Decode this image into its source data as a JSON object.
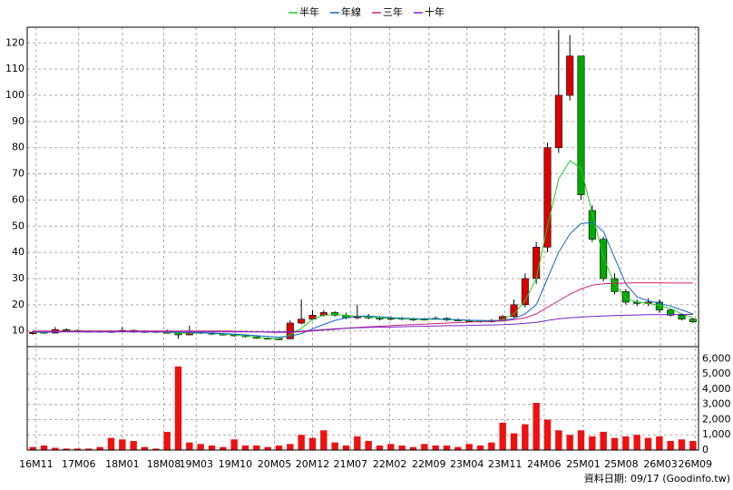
{
  "chart_data": {
    "type": "candlestick",
    "legend_position": "top",
    "grid": true,
    "up_color": "#dd0000",
    "down_color": "#00aa00",
    "volume_color": "#ee1111",
    "footnote": "資料日期: 09/17 (Goodinfo.tw)",
    "xlim": [
      0,
      60
    ],
    "xticks": [
      {
        "value": 0.8,
        "label": "16M11"
      },
      {
        "value": 4.6,
        "label": "17M06"
      },
      {
        "value": 8.5,
        "label": "18M01"
      },
      {
        "value": 12.2,
        "label": "18M08"
      },
      {
        "value": 15.1,
        "label": "19M03"
      },
      {
        "value": 18.6,
        "label": "19M10"
      },
      {
        "value": 22.1,
        "label": "20M05"
      },
      {
        "value": 25.5,
        "label": "20M12"
      },
      {
        "value": 28.9,
        "label": "21M07"
      },
      {
        "value": 32.4,
        "label": "22M02"
      },
      {
        "value": 35.9,
        "label": "22M09"
      },
      {
        "value": 39.3,
        "label": "23M04"
      },
      {
        "value": 42.7,
        "label": "23M11"
      },
      {
        "value": 46.2,
        "label": "24M06"
      },
      {
        "value": 49.7,
        "label": "25M01"
      },
      {
        "value": 53.1,
        "label": "25M08"
      },
      {
        "value": 56.6,
        "label": "26M03"
      },
      {
        "value": 59.7,
        "label": "26M09"
      }
    ],
    "ylim": [
      4,
      126
    ],
    "yticks": [
      10,
      20,
      30,
      40,
      50,
      60,
      70,
      80,
      90,
      100,
      110,
      120
    ],
    "y2lim": [
      0,
      6800
    ],
    "y2ticks": [
      0,
      {
        "value": 1000,
        "label": "1,000"
      },
      {
        "value": 2000,
        "label": "2,000"
      },
      {
        "value": 3000,
        "label": "3,000"
      },
      {
        "value": 4000,
        "label": "4,000"
      },
      {
        "value": 5000,
        "label": "5,000"
      },
      {
        "value": 6000,
        "label": "6,000"
      }
    ],
    "open": [
      9.0,
      9.5,
      9.2,
      10.5,
      10.2,
      9.8,
      9.9,
      9.7,
      9.8,
      10.2,
      9.6,
      9.8,
      9.5,
      9.3,
      8.5,
      9.6,
      9.2,
      8.8,
      8.5,
      8.2,
      7.8,
      7.2,
      7.0,
      7.0,
      13.0,
      14.5,
      16.0,
      17.0,
      16.0,
      15.0,
      15.5,
      15.0,
      14.5,
      14.8,
      14.5,
      14.2,
      14.5,
      14.8,
      14.2,
      14.0,
      13.8,
      13.5,
      14.0,
      15.5,
      20.0,
      30.0,
      42.0,
      80.0,
      100.0,
      115.0,
      56.0,
      45.0,
      30.0,
      25.0,
      21.0,
      20.5,
      21.0,
      18.0,
      16.0,
      14.5
    ],
    "high": [
      10,
      10,
      11.5,
      11,
      10.5,
      10.2,
      10.2,
      10.2,
      11.5,
      10.5,
      10.2,
      10,
      10.5,
      9.8,
      12,
      10,
      9.5,
      9.2,
      8.8,
      8.5,
      8.2,
      7.6,
      7.4,
      14,
      22,
      18,
      18,
      17.5,
      17,
      20,
      16.5,
      15.5,
      15.5,
      15.3,
      15,
      15,
      15.5,
      15.2,
      14.8,
      14.5,
      14.2,
      14.5,
      16,
      22,
      32,
      44,
      82,
      125,
      123,
      115,
      58,
      46,
      32,
      26,
      22,
      22.5,
      22,
      18.5,
      16.5,
      15
    ],
    "low": [
      8.5,
      9,
      9,
      10,
      9.5,
      9.5,
      9.5,
      9.5,
      9.5,
      9.3,
      9.3,
      9.2,
      9,
      7,
      8.3,
      8.8,
      8.5,
      8.2,
      7.8,
      7.5,
      7,
      6.7,
      6.5,
      6.8,
      12.5,
      14,
      15.5,
      15.5,
      14.5,
      14.5,
      14.5,
      14,
      14,
      14,
      13.8,
      14,
      14.2,
      13.8,
      13.6,
      13.4,
      13.2,
      13.2,
      13.8,
      15,
      19,
      28,
      40,
      78,
      98,
      60,
      44,
      29,
      24,
      20,
      19.5,
      19.5,
      17,
      15.5,
      14,
      13
    ],
    "close": [
      9.5,
      9.2,
      10.5,
      10.2,
      9.8,
      9.9,
      9.7,
      9.8,
      10.2,
      9.6,
      9.8,
      9.5,
      9.3,
      8.5,
      9.6,
      9.2,
      8.8,
      8.5,
      8.2,
      7.8,
      7.2,
      7.0,
      6.8,
      13.0,
      14.5,
      16.0,
      17.0,
      16.0,
      15.0,
      15.5,
      15.0,
      14.5,
      14.8,
      14.5,
      14.2,
      14.5,
      14.8,
      14.2,
      14.0,
      13.8,
      13.5,
      14.0,
      15.5,
      20.0,
      30.0,
      42.0,
      80.0,
      100.0,
      115.0,
      62.0,
      45.0,
      30.0,
      25.0,
      21.0,
      20.5,
      21.0,
      18.0,
      16.0,
      14.5,
      13.5
    ],
    "volume": [
      200,
      300,
      150,
      100,
      100,
      100,
      200,
      800,
      700,
      600,
      200,
      100,
      1200,
      5500,
      500,
      400,
      300,
      200,
      700,
      300,
      300,
      200,
      300,
      400,
      1000,
      800,
      1300,
      500,
      300,
      900,
      600,
      300,
      400,
      300,
      200,
      400,
      300,
      300,
      200,
      400,
      300,
      500,
      1800,
      1100,
      1700,
      3100,
      2000,
      1300,
      1000,
      1300,
      900,
      1200,
      800,
      900,
      1000,
      800,
      900,
      600,
      700,
      600
    ],
    "ma_series": [
      {
        "name": "半年",
        "color": "#22cc22",
        "values": [
          9.5,
          9.4,
          9.7,
          10,
          10,
          9.9,
          9.8,
          9.8,
          9.9,
          9.9,
          9.8,
          9.6,
          9.5,
          9.2,
          9.1,
          9.2,
          9.1,
          8.8,
          8.5,
          8.1,
          7.6,
          7.2,
          7.0,
          8.5,
          11,
          14.5,
          16,
          16.3,
          16,
          15.5,
          15.3,
          15,
          14.8,
          14.6,
          14.5,
          14.4,
          14.5,
          14.4,
          14.2,
          14,
          13.8,
          13.8,
          14.3,
          16.5,
          21.5,
          30,
          50,
          68,
          75,
          72,
          55,
          38,
          28,
          22.5,
          21,
          20.5,
          19.8,
          18.5,
          16.5,
          15
        ]
      },
      {
        "name": "年線",
        "color": "#1166cc",
        "values": [
          9.6,
          9.5,
          9.6,
          9.8,
          9.9,
          9.9,
          9.9,
          9.9,
          9.9,
          9.9,
          9.9,
          9.8,
          9.7,
          9.5,
          9.4,
          9.3,
          9.2,
          9.0,
          8.8,
          8.5,
          8.2,
          7.9,
          7.6,
          8.0,
          9.0,
          10.8,
          12.5,
          14,
          15,
          15.6,
          15.7,
          15.4,
          15.1,
          14.9,
          14.7,
          14.6,
          14.6,
          14.5,
          14.3,
          14.1,
          14,
          13.9,
          14,
          14.7,
          16.5,
          20,
          30,
          40,
          47,
          51,
          51.5,
          48,
          38,
          28,
          23,
          21.5,
          20.5,
          19.5,
          18,
          16.5
        ]
      },
      {
        "name": "三年",
        "color": "#cc2277",
        "values": [
          10,
          10,
          10,
          10,
          10,
          10,
          10,
          10,
          10,
          10,
          10,
          10,
          10,
          10,
          10,
          10,
          10,
          10,
          9.9,
          9.8,
          9.6,
          9.5,
          9.4,
          9.5,
          9.7,
          10,
          10.3,
          10.6,
          11,
          11.3,
          11.6,
          11.8,
          12,
          12.2,
          12.4,
          12.6,
          12.8,
          13,
          13.2,
          13.4,
          13.5,
          13.6,
          13.8,
          14.3,
          15,
          16.5,
          19,
          21.5,
          24,
          26,
          27.5,
          28,
          28.2,
          28.3,
          28.4,
          28.4,
          28.4,
          28.3,
          28.3,
          28.3
        ]
      },
      {
        "name": "十年",
        "color": "#7722cc",
        "values": [
          9.6,
          9.6,
          9.6,
          9.6,
          9.6,
          9.6,
          9.6,
          9.6,
          9.6,
          9.6,
          9.6,
          9.6,
          9.6,
          9.6,
          9.6,
          9.6,
          9.6,
          9.6,
          9.6,
          9.6,
          9.6,
          9.6,
          9.6,
          9.7,
          9.9,
          10.2,
          10.5,
          10.8,
          11,
          11.2,
          11.3,
          11.4,
          11.5,
          11.6,
          11.7,
          11.8,
          11.9,
          12,
          12,
          12.1,
          12.2,
          12.3,
          12.4,
          12.6,
          12.9,
          13.3,
          14,
          14.6,
          15,
          15.3,
          15.5,
          15.7,
          15.9,
          16,
          16.1,
          16.2,
          16.2,
          16.2,
          16.3,
          16.3
        ]
      }
    ]
  }
}
